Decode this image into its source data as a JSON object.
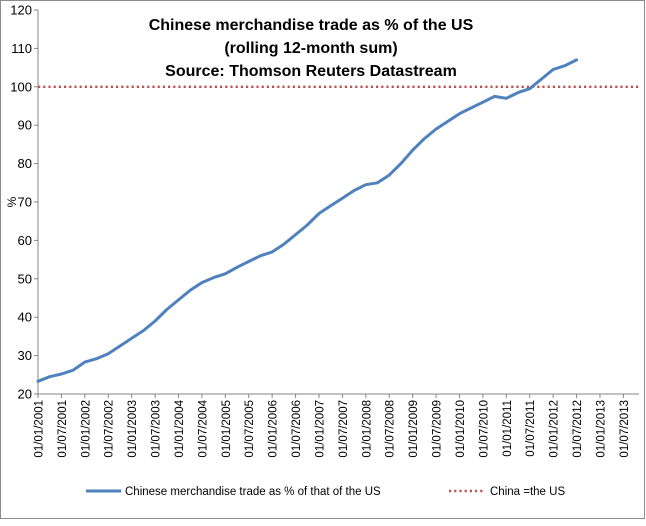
{
  "chart_data": {
    "type": "line",
    "title_lines": [
      "Chinese merchandise trade as % of the US",
      "(rolling 12-month sum)",
      "Source: Thomson Reuters Datastream"
    ],
    "xlabel": "",
    "ylabel": "%",
    "ylim": [
      20,
      120
    ],
    "yticks": [
      "20",
      "30",
      "40",
      "50",
      "60",
      "70",
      "80",
      "90",
      "100",
      "110",
      "120"
    ],
    "x_tick_labels": [
      "01/01/2001",
      "01/07/2001",
      "01/01/2002",
      "01/07/2002",
      "01/01/2003",
      "01/07/2003",
      "01/01/2004",
      "01/07/2004",
      "01/01/2005",
      "01/07/2005",
      "01/01/2006",
      "01/07/2006",
      "01/01/2007",
      "01/07/2007",
      "01/01/2008",
      "01/07/2008",
      "01/01/2009",
      "01/07/2009",
      "01/01/2010",
      "01/07/2010",
      "01/01/2011",
      "01/07/2011",
      "01/01/2012",
      "01/07/2012",
      "01/01/2013",
      "01/07/2013"
    ],
    "series": [
      {
        "name": "Chinese merchandise trade as % of that of the US",
        "color": "#4f81bd",
        "style": "solid",
        "points": [
          [
            0,
            23.3
          ],
          [
            3,
            24.5
          ],
          [
            6,
            25.2
          ],
          [
            9,
            26.2
          ],
          [
            12,
            28.3
          ],
          [
            15,
            29.2
          ],
          [
            18,
            30.5
          ],
          [
            21,
            32.5
          ],
          [
            24,
            34.5
          ],
          [
            27,
            36.5
          ],
          [
            30,
            39.0
          ],
          [
            33,
            42.0
          ],
          [
            36,
            44.5
          ],
          [
            39,
            47.0
          ],
          [
            42,
            49.0
          ],
          [
            45,
            50.3
          ],
          [
            48,
            51.3
          ],
          [
            51,
            53.0
          ],
          [
            54,
            54.5
          ],
          [
            57,
            56.0
          ],
          [
            60,
            57.0
          ],
          [
            63,
            59.0
          ],
          [
            66,
            61.5
          ],
          [
            69,
            64.0
          ],
          [
            72,
            67.0
          ],
          [
            75,
            69.0
          ],
          [
            78,
            71.0
          ],
          [
            81,
            73.0
          ],
          [
            84,
            74.5
          ],
          [
            87,
            75.0
          ],
          [
            90,
            77.0
          ],
          [
            93,
            80.0
          ],
          [
            96,
            83.5
          ],
          [
            99,
            86.5
          ],
          [
            102,
            89.0
          ],
          [
            105,
            91.0
          ],
          [
            108,
            93.0
          ],
          [
            111,
            94.5
          ],
          [
            114,
            96.0
          ],
          [
            117,
            97.5
          ],
          [
            120,
            97.0
          ],
          [
            123,
            98.5
          ],
          [
            126,
            99.5
          ],
          [
            129,
            102.0
          ],
          [
            132,
            104.5
          ],
          [
            135,
            105.5
          ],
          [
            138,
            107.0
          ]
        ]
      },
      {
        "name": "China =the US",
        "color": "#c0504d",
        "style": "dotted",
        "value": 100
      }
    ],
    "legend_position": "bottom"
  }
}
